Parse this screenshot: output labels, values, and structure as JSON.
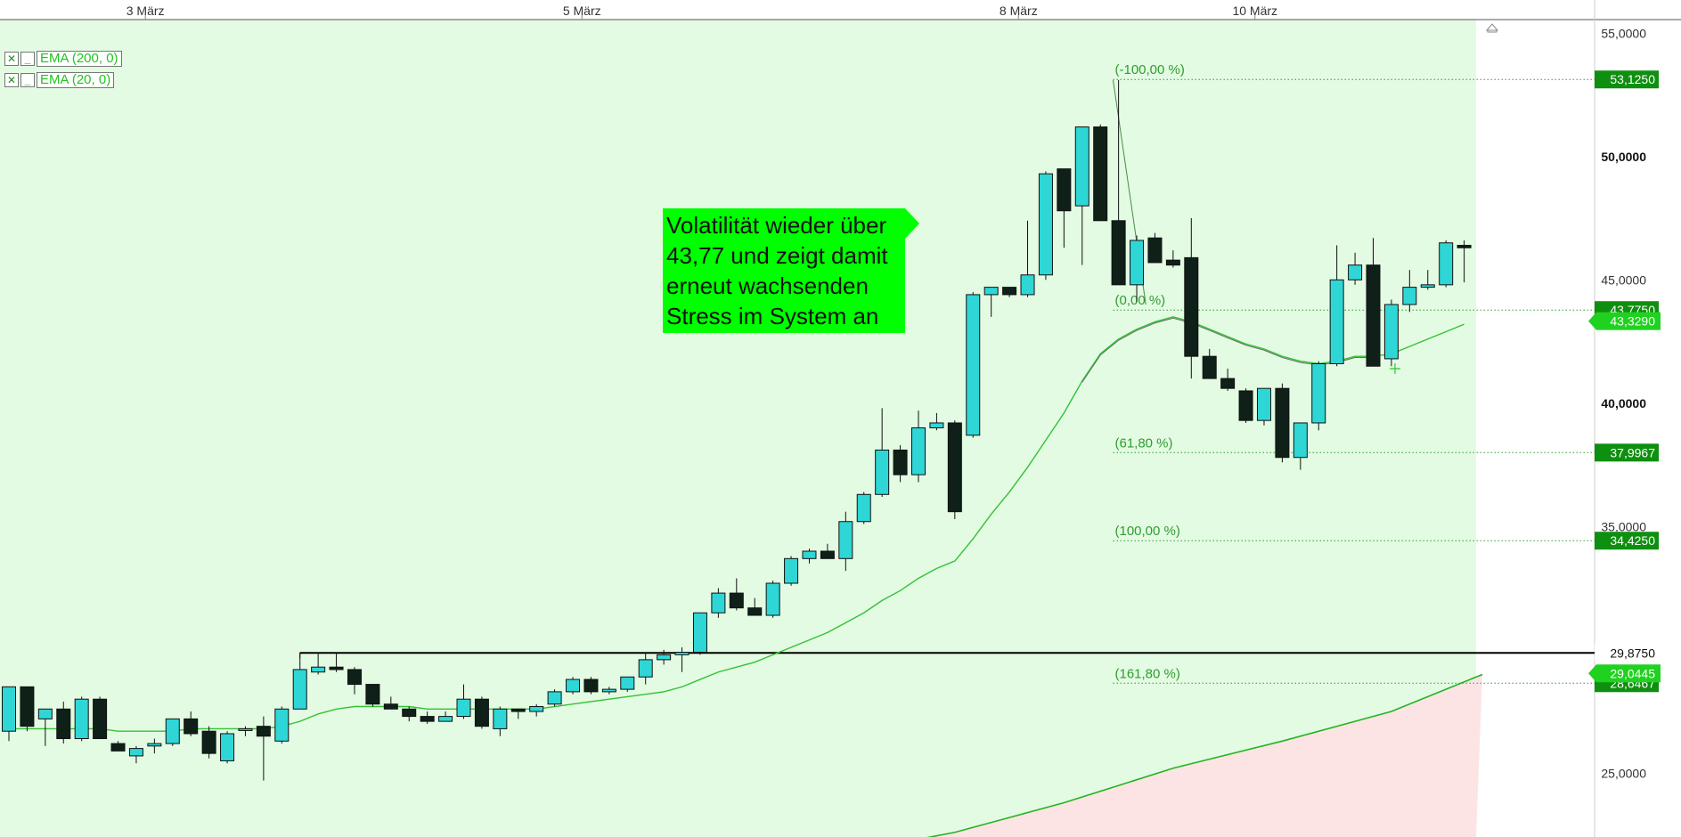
{
  "legend": [
    {
      "label": "EMA (200, 0)",
      "close_glyph": "✕",
      "minimize_glyph": "_"
    },
    {
      "label": "EMA (20, 0)",
      "close_glyph": "✕",
      "minimize_glyph": "_"
    }
  ],
  "annotation": {
    "lines": [
      "Volatilität wieder über",
      "43,77 und zeigt damit",
      "erneut wachsenden",
      "Stress im System an"
    ]
  },
  "colors": {
    "background_green": "#e3fae3",
    "background_red": "#fde4e4",
    "bull_candle": "#2fd6d6",
    "bear_candle": "#0e2018",
    "ema20": "#33c333",
    "ema200": "#22b422",
    "fib": "#2e9e2e",
    "badge_green": "#0f8f0f",
    "badge_bright": "#1fd21f",
    "resistance": "#000000"
  },
  "chart_data": {
    "type": "candlestick",
    "x_labels": [
      {
        "index": 7.5,
        "label": "3 März"
      },
      {
        "index": 31.5,
        "label": "5 März"
      },
      {
        "index": 55.5,
        "label": "8 März"
      },
      {
        "index": 68.5,
        "label": "10 März"
      }
    ],
    "y_ticks": [
      {
        "value": 55,
        "label": "55,0000",
        "bold": false
      },
      {
        "value": 50,
        "label": "50,0000",
        "bold": true
      },
      {
        "value": 45,
        "label": "45,0000",
        "bold": false
      },
      {
        "value": 40,
        "label": "40,0000",
        "bold": true
      },
      {
        "value": 35,
        "label": "35,0000",
        "bold": false
      },
      {
        "value": 25,
        "label": "25,0000",
        "bold": false
      }
    ],
    "ylim": [
      21.2,
      56.0
    ],
    "candles": [
      [
        26.7,
        28.5,
        26.3,
        28.5
      ],
      [
        28.5,
        28.5,
        26.7,
        26.9
      ],
      [
        27.2,
        27.6,
        26.1,
        27.6
      ],
      [
        27.6,
        27.9,
        26.2,
        26.4
      ],
      [
        26.4,
        28.1,
        26.3,
        28.0
      ],
      [
        28.0,
        28.1,
        26.4,
        26.4
      ],
      [
        26.2,
        26.3,
        25.9,
        25.9
      ],
      [
        25.7,
        26.1,
        25.4,
        26.0
      ],
      [
        26.1,
        26.4,
        25.8,
        26.2
      ],
      [
        26.2,
        27.2,
        26.1,
        27.2
      ],
      [
        27.2,
        27.5,
        26.5,
        26.6
      ],
      [
        26.7,
        26.9,
        25.6,
        25.8
      ],
      [
        25.5,
        26.7,
        25.4,
        26.6
      ],
      [
        26.8,
        26.9,
        26.5,
        26.8
      ],
      [
        26.9,
        27.3,
        24.7,
        26.5
      ],
      [
        26.3,
        27.7,
        26.2,
        27.6
      ],
      [
        27.6,
        29.9,
        27.6,
        29.2
      ],
      [
        29.1,
        29.9,
        29.0,
        29.3
      ],
      [
        29.3,
        29.9,
        29.1,
        29.2
      ],
      [
        29.2,
        29.3,
        28.2,
        28.6
      ],
      [
        28.6,
        28.6,
        27.7,
        27.8
      ],
      [
        27.8,
        28.1,
        27.6,
        27.6
      ],
      [
        27.6,
        27.7,
        27.1,
        27.3
      ],
      [
        27.3,
        27.5,
        27.0,
        27.1
      ],
      [
        27.1,
        27.5,
        27.1,
        27.3
      ],
      [
        27.3,
        28.6,
        27.2,
        28.0
      ],
      [
        28.0,
        28.1,
        26.8,
        26.9
      ],
      [
        26.8,
        27.7,
        26.5,
        27.6
      ],
      [
        27.6,
        27.6,
        27.2,
        27.5
      ],
      [
        27.5,
        27.8,
        27.3,
        27.7
      ],
      [
        27.8,
        28.4,
        27.7,
        28.3
      ],
      [
        28.3,
        28.9,
        28.2,
        28.8
      ],
      [
        28.8,
        28.9,
        28.2,
        28.3
      ],
      [
        28.3,
        28.5,
        28.2,
        28.4
      ],
      [
        28.4,
        28.9,
        28.3,
        28.9
      ],
      [
        28.9,
        29.9,
        28.6,
        29.6
      ],
      [
        29.6,
        30.0,
        29.4,
        29.8
      ],
      [
        29.8,
        30.1,
        29.1,
        29.9
      ],
      [
        29.9,
        31.5,
        29.8,
        31.5
      ],
      [
        31.5,
        32.5,
        31.3,
        32.3
      ],
      [
        32.3,
        32.9,
        31.6,
        31.7
      ],
      [
        31.7,
        32.1,
        31.4,
        31.4
      ],
      [
        31.4,
        32.8,
        31.3,
        32.7
      ],
      [
        32.7,
        33.8,
        32.6,
        33.7
      ],
      [
        33.7,
        34.1,
        33.5,
        34.0
      ],
      [
        34.0,
        34.3,
        33.8,
        33.7
      ],
      [
        33.7,
        35.6,
        33.2,
        35.2
      ],
      [
        35.2,
        36.4,
        35.1,
        36.3
      ],
      [
        36.3,
        39.8,
        36.2,
        38.1
      ],
      [
        38.1,
        38.3,
        36.8,
        37.1
      ],
      [
        37.1,
        39.7,
        36.8,
        39.0
      ],
      [
        39.0,
        39.6,
        38.9,
        39.2
      ],
      [
        39.2,
        39.3,
        35.3,
        35.6
      ],
      [
        38.7,
        44.5,
        38.6,
        44.4
      ],
      [
        44.4,
        44.7,
        43.5,
        44.7
      ],
      [
        44.7,
        44.7,
        44.3,
        44.4
      ],
      [
        44.4,
        47.4,
        44.3,
        45.2
      ],
      [
        45.2,
        49.4,
        45.0,
        49.3
      ],
      [
        49.5,
        49.5,
        46.3,
        47.8
      ],
      [
        48.0,
        50.9,
        45.6,
        51.2
      ],
      [
        51.2,
        51.3,
        47.4,
        47.4
      ],
      [
        47.4,
        53.1,
        44.8,
        44.8
      ],
      [
        44.8,
        46.8,
        44.1,
        46.6
      ],
      [
        46.7,
        46.9,
        45.7,
        45.7
      ],
      [
        45.8,
        46.2,
        45.5,
        45.6
      ],
      [
        45.9,
        47.5,
        41.0,
        41.9
      ],
      [
        41.9,
        42.2,
        41.2,
        41.0
      ],
      [
        41.0,
        41.4,
        40.5,
        40.6
      ],
      [
        40.5,
        40.6,
        39.2,
        39.3
      ],
      [
        39.3,
        40.6,
        39.1,
        40.6
      ],
      [
        40.6,
        40.8,
        37.6,
        37.8
      ],
      [
        37.8,
        39.2,
        37.3,
        39.2
      ],
      [
        39.2,
        41.7,
        38.9,
        41.6
      ],
      [
        41.6,
        46.4,
        41.5,
        45.0
      ],
      [
        45.0,
        46.1,
        44.8,
        45.6
      ],
      [
        45.6,
        46.7,
        41.5,
        41.5
      ],
      [
        41.8,
        44.2,
        41.5,
        44.0
      ],
      [
        44.0,
        45.4,
        43.7,
        44.7
      ],
      [
        44.7,
        45.4,
        44.6,
        44.8
      ],
      [
        44.8,
        46.6,
        44.7,
        46.5
      ],
      [
        46.4,
        46.6,
        44.9,
        46.3
      ]
    ],
    "ema20": [
      26.8,
      26.8,
      26.8,
      26.8,
      26.8,
      26.8,
      26.7,
      26.7,
      26.7,
      26.7,
      26.8,
      26.8,
      26.8,
      26.8,
      26.8,
      26.9,
      27.1,
      27.4,
      27.6,
      27.7,
      27.7,
      27.7,
      27.7,
      27.6,
      27.6,
      27.6,
      27.6,
      27.6,
      27.6,
      27.6,
      27.7,
      27.8,
      27.9,
      28.0,
      28.1,
      28.2,
      28.3,
      28.5,
      28.8,
      29.1,
      29.3,
      29.5,
      29.8,
      30.1,
      30.4,
      30.7,
      31.1,
      31.5,
      32.0,
      32.4,
      32.9,
      33.3,
      33.6,
      34.5,
      35.5,
      36.4,
      37.4,
      38.5,
      39.6,
      40.9,
      42.0,
      42.6,
      43.0,
      43.3,
      43.5,
      43.3,
      43.0,
      42.7,
      42.4,
      42.2,
      41.9,
      41.7,
      41.6,
      41.7,
      41.9,
      41.9,
      42.0,
      42.3,
      42.6,
      42.9,
      43.2
    ],
    "ema200_points": [
      [
        42,
        21.2
      ],
      [
        52,
        22.6
      ],
      [
        58,
        23.8
      ],
      [
        64,
        25.2
      ],
      [
        70,
        26.3
      ],
      [
        76,
        27.5
      ],
      [
        81,
        29.0
      ]
    ],
    "resistance_level": 29.875,
    "fibonacci": {
      "start_index": 60.7,
      "levels": [
        {
          "value": 53.125,
          "label": "(-100,00 %)",
          "price_label": "53,1250"
        },
        {
          "value": 43.775,
          "label": "(0,00 %)",
          "price_label": "43,7750"
        },
        {
          "value": 37.9967,
          "label": "(61,80 %)",
          "price_label": "37,9967"
        },
        {
          "value": 34.425,
          "label": "(100,00 %)",
          "price_label": "34,4250"
        },
        {
          "value": 28.6467,
          "label": "(161,80 %)",
          "price_label": "28,6467"
        }
      ],
      "trend_line": [
        [
          60.7,
          53.1
        ],
        [
          62.5,
          44.0
        ]
      ]
    },
    "price_badges": [
      {
        "value": 43.329,
        "label": "43,3290",
        "style": "arrow"
      },
      {
        "value": 29.875,
        "label": "29,8750",
        "style": "plain-white"
      },
      {
        "value": 29.0445,
        "label": "29,0445",
        "style": "arrow"
      }
    ]
  }
}
